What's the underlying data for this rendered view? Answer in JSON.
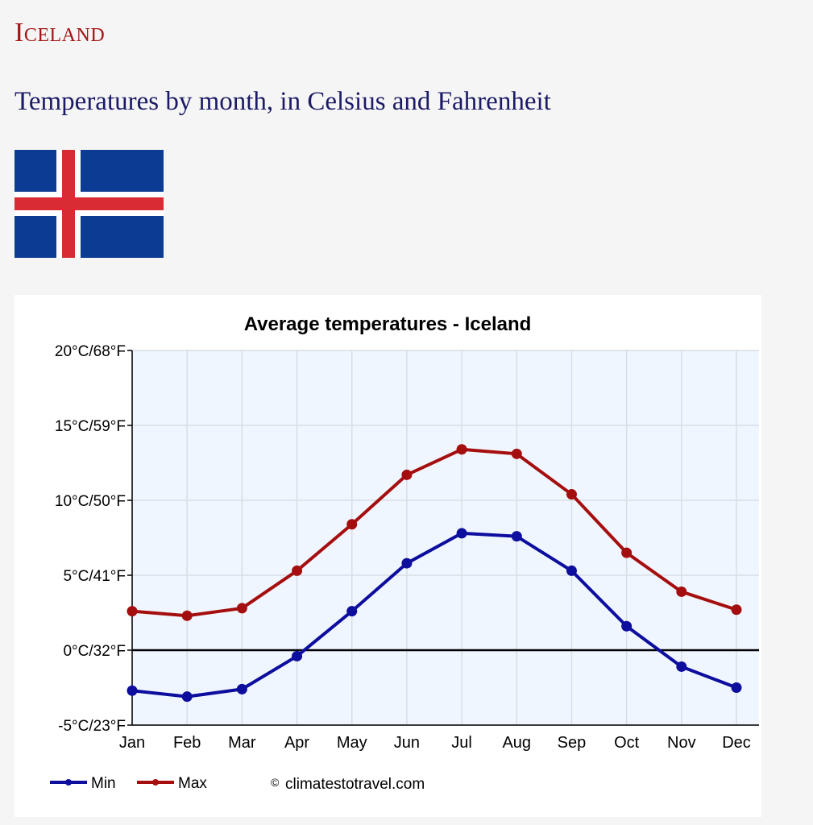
{
  "page": {
    "title": "Iceland",
    "subtitle": "Temperatures by month, in Celsius and Fahrenheit"
  },
  "flag": {
    "country": "Iceland",
    "colors": {
      "field": "#0b3b93",
      "cross_outer": "#ffffff",
      "cross_inner": "#d92b33"
    }
  },
  "chart_data": {
    "type": "line",
    "title": "Average temperatures - Iceland",
    "xlabel": "",
    "ylabel": "",
    "categories": [
      "Jan",
      "Feb",
      "Mar",
      "Apr",
      "May",
      "Jun",
      "Jul",
      "Aug",
      "Sep",
      "Oct",
      "Nov",
      "Dec"
    ],
    "series": [
      {
        "name": "Min",
        "color": "#0d0d9e",
        "values": [
          -2.7,
          -3.1,
          -2.6,
          -0.4,
          2.6,
          5.8,
          7.8,
          7.6,
          5.3,
          1.6,
          -1.1,
          -2.5
        ]
      },
      {
        "name": "Max",
        "color": "#a50e0e",
        "values": [
          2.6,
          2.3,
          2.8,
          5.3,
          8.4,
          11.7,
          13.4,
          13.1,
          10.4,
          6.5,
          3.9,
          2.7
        ]
      }
    ],
    "ylim": [
      -5,
      20
    ],
    "yticks": [
      -5,
      0,
      5,
      10,
      15,
      20
    ],
    "ytick_labels": [
      "-5°C/23°F",
      "0°C/32°F",
      "5°C/41°F",
      "10°C/50°F",
      "15°C/59°F",
      "20°C/68°F"
    ],
    "zero_line": true,
    "grid": true,
    "legend_position": "bottom-left",
    "credit": "climatestotravel.com",
    "credit_symbol": "©",
    "colors": {
      "plot_bg": "#f0f6ff",
      "grid": "#d9dde4",
      "axis": "#000000"
    }
  }
}
